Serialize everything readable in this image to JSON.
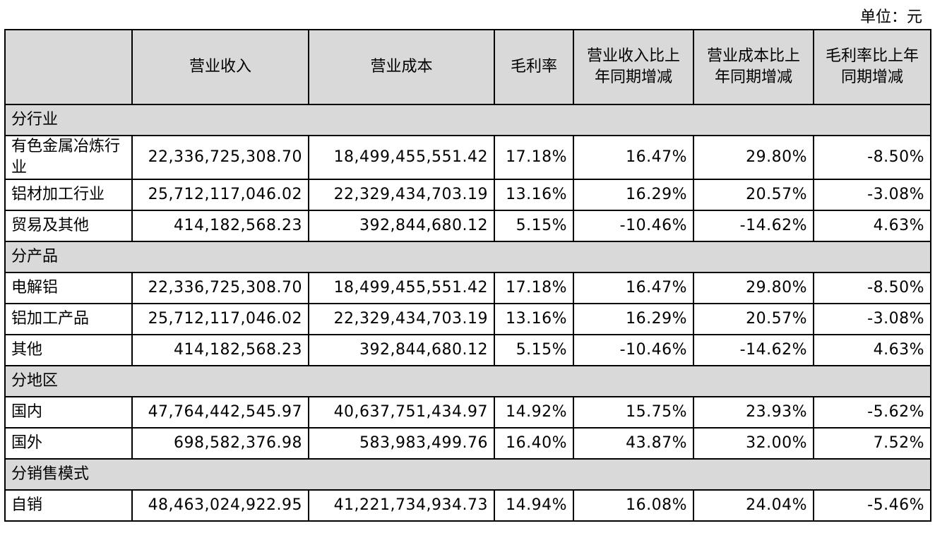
{
  "unit_label": "单位：元",
  "headers": [
    "",
    "营业收入",
    "营业成本",
    "毛利率",
    "营业收入比上年同期增减",
    "营业成本比上年同期增减",
    "毛利率比上年同期增减"
  ],
  "sections": [
    {
      "title": "分行业",
      "rows": [
        {
          "name": "有色金属冶炼行业",
          "values": [
            "22,336,725,308.70",
            "18,499,455,551.42",
            "17.18%",
            "16.47%",
            "29.80%",
            "-8.50%"
          ]
        },
        {
          "name": "铝材加工行业",
          "values": [
            "25,712,117,046.02",
            "22,329,434,703.19",
            "13.16%",
            "16.29%",
            "20.57%",
            "-3.08%"
          ]
        },
        {
          "name": "贸易及其他",
          "values": [
            "414,182,568.23",
            "392,844,680.12",
            "5.15%",
            "-10.46%",
            "-14.62%",
            "4.63%"
          ]
        }
      ]
    },
    {
      "title": "分产品",
      "rows": [
        {
          "name": "电解铝",
          "values": [
            "22,336,725,308.70",
            "18,499,455,551.42",
            "17.18%",
            "16.47%",
            "29.80%",
            "-8.50%"
          ]
        },
        {
          "name": "铝加工产品",
          "values": [
            "25,712,117,046.02",
            "22,329,434,703.19",
            "13.16%",
            "16.29%",
            "20.57%",
            "-3.08%"
          ]
        },
        {
          "name": "其他",
          "values": [
            "414,182,568.23",
            "392,844,680.12",
            "5.15%",
            "-10.46%",
            "-14.62%",
            "4.63%"
          ]
        }
      ]
    },
    {
      "title": "分地区",
      "rows": [
        {
          "name": "国内",
          "values": [
            "47,764,442,545.97",
            "40,637,751,434.97",
            "14.92%",
            "15.75%",
            "23.93%",
            "-5.62%"
          ]
        },
        {
          "name": "国外",
          "values": [
            "698,582,376.98",
            "583,983,499.76",
            "16.40%",
            "43.87%",
            "32.00%",
            "7.52%"
          ]
        }
      ]
    },
    {
      "title": "分销售模式",
      "rows": [
        {
          "name": "自销",
          "values": [
            "48,463,024,922.95",
            "41,221,734,934.73",
            "14.94%",
            "16.08%",
            "24.04%",
            "-5.46%"
          ]
        }
      ]
    }
  ]
}
